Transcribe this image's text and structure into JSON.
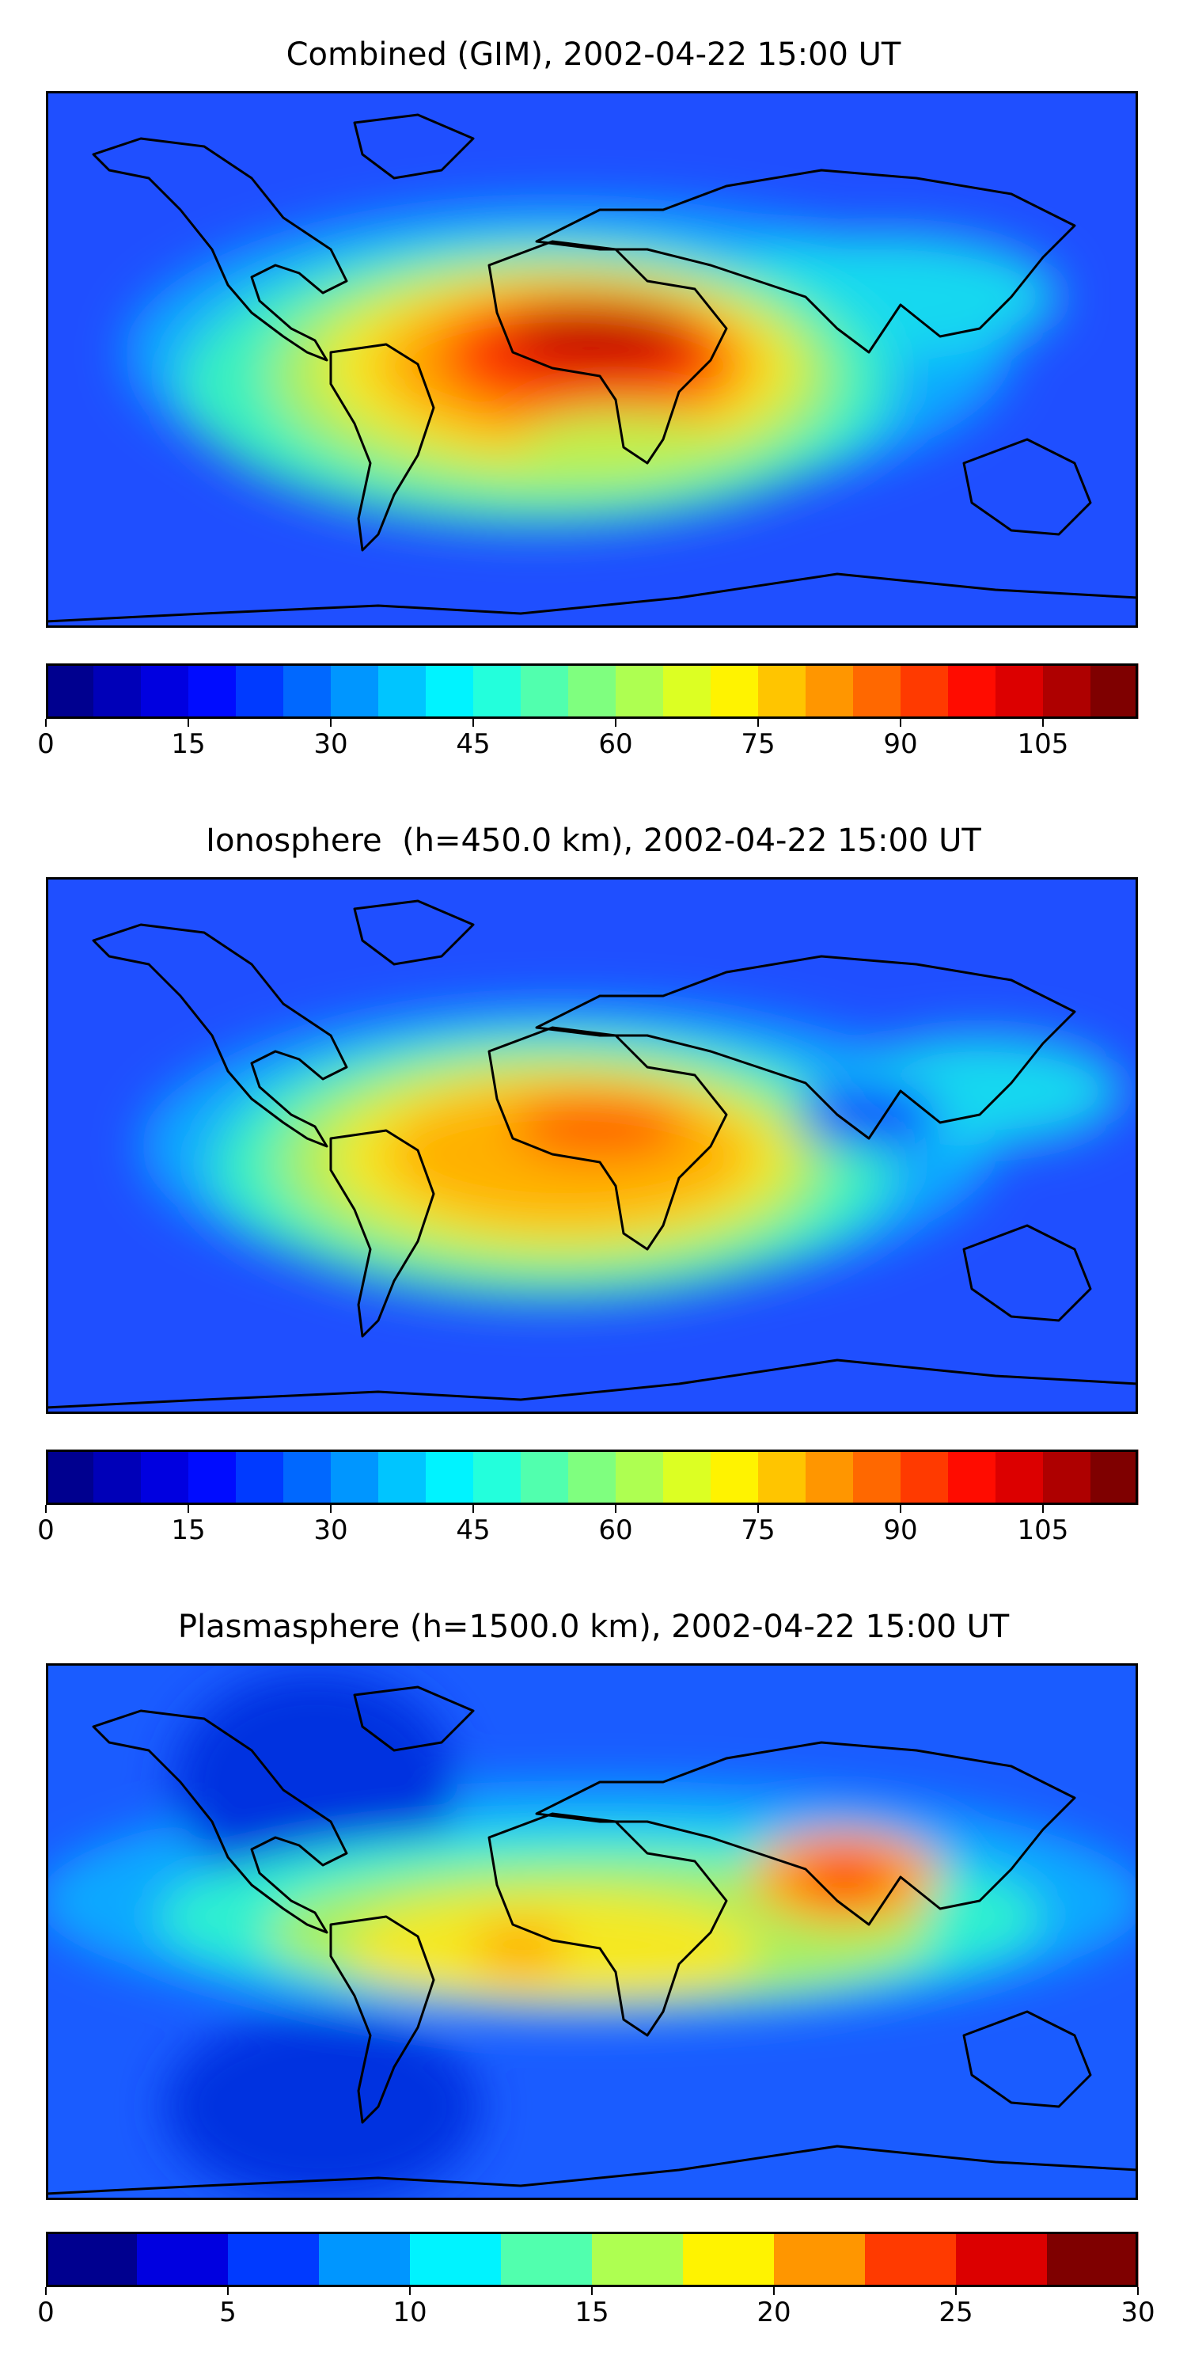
{
  "panels": [
    {
      "title": "Combined (GIM), 2002-04-22 15:00 UT",
      "colorbar": {
        "min": 0,
        "max": 115,
        "levels": 23,
        "ticks": [
          "0",
          "15",
          "30",
          "45",
          "60",
          "75",
          "90",
          "105"
        ]
      }
    },
    {
      "title": "Ionosphere  (h=450.0 km), 2002-04-22 15:00 UT",
      "colorbar": {
        "min": 0,
        "max": 115,
        "levels": 23,
        "ticks": [
          "0",
          "15",
          "30",
          "45",
          "60",
          "75",
          "90",
          "105"
        ]
      }
    },
    {
      "title": "Plasmasphere (h=1500.0 km), 2002-04-22 15:00 UT",
      "colorbar": {
        "min": 0,
        "max": 30,
        "levels": 12,
        "ticks": [
          "0",
          "5",
          "10",
          "15",
          "20",
          "25",
          "30"
        ]
      }
    }
  ],
  "colors": {
    "jet": [
      "#00008f",
      "#0000ff",
      "#007fff",
      "#00ffff",
      "#7fff7f",
      "#ffff00",
      "#ff7f00",
      "#ff0000",
      "#7f0000"
    ],
    "coastline": "#000000"
  }
}
